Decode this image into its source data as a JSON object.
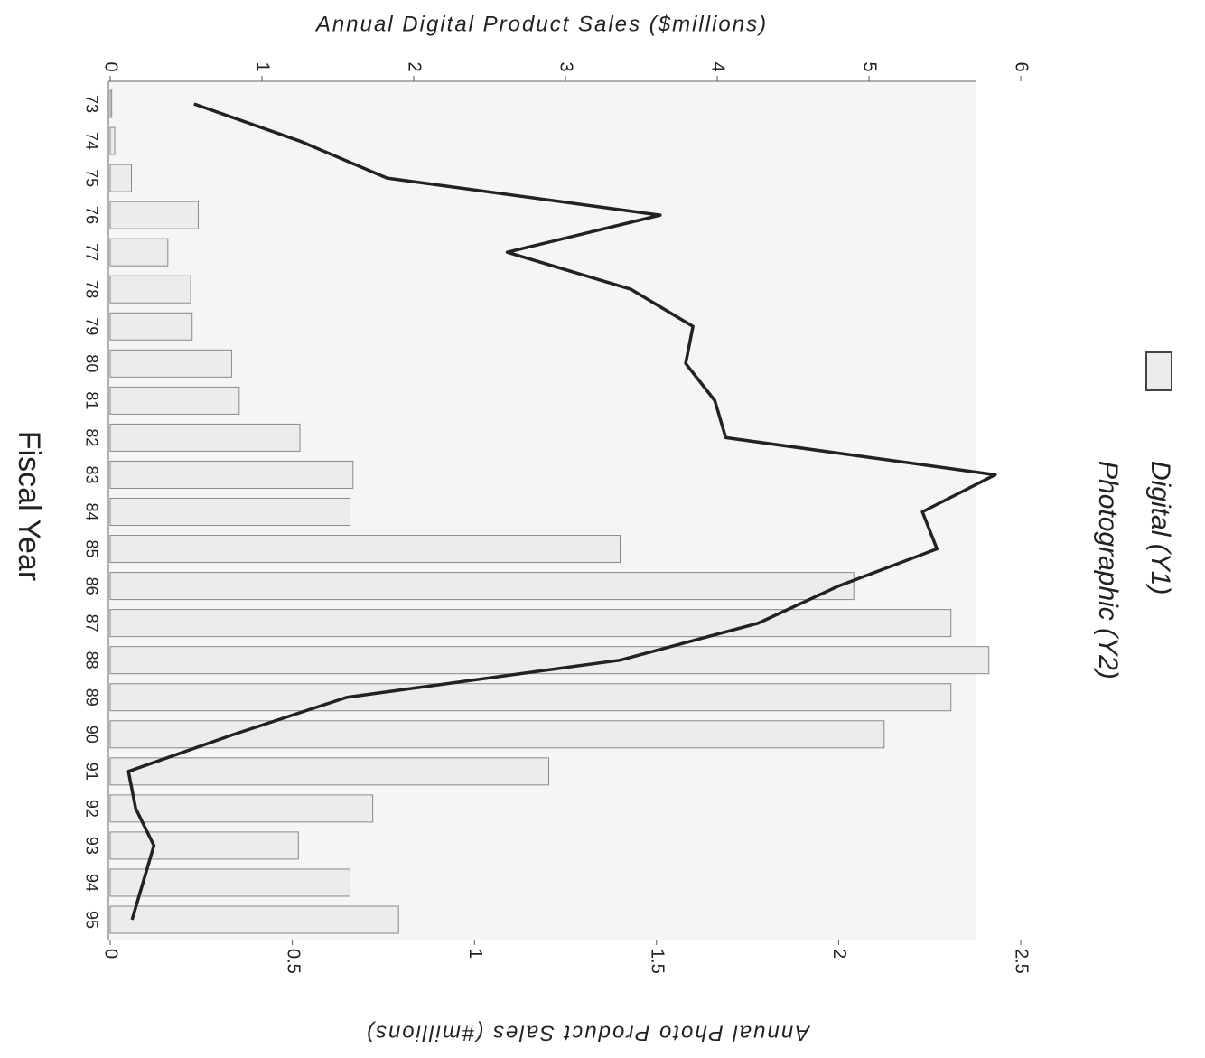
{
  "chart_data": {
    "type": "bar_line",
    "title": "Annual Digital Product Sales ($millions)",
    "y2_label": "Annual Photo Product Sales (#millions)",
    "x_label": "Fiscal Year",
    "categories": [
      "73",
      "74",
      "75",
      "76",
      "77",
      "78",
      "79",
      "80",
      "81",
      "82",
      "83",
      "84",
      "85",
      "86",
      "87",
      "88",
      "89",
      "90",
      "91",
      "92",
      "93",
      "94",
      "95"
    ],
    "series": [
      {
        "name": "Digital (Y1)",
        "type": "bar",
        "color": "#ececec",
        "axis": "y",
        "values": [
          0.01,
          0.03,
          0.14,
          0.58,
          0.38,
          0.53,
          0.54,
          0.8,
          0.85,
          1.25,
          1.6,
          1.58,
          3.36,
          4.9,
          5.54,
          5.79,
          5.54,
          5.1,
          2.89,
          1.73,
          1.24,
          1.58,
          1.9
        ]
      },
      {
        "name": "Photographic (Y2)",
        "type": "line",
        "color": "#222222",
        "axis": "y2",
        "values": [
          0.23,
          0.52,
          0.76,
          1.51,
          1.09,
          1.43,
          1.6,
          1.58,
          1.66,
          1.69,
          2.43,
          2.23,
          2.27,
          2.0,
          1.78,
          1.4,
          0.65,
          0.34,
          0.05,
          0.07,
          0.12,
          0.09,
          0.06
        ]
      }
    ],
    "ylim": [
      0,
      6
    ],
    "yticks": [
      0,
      1,
      2,
      3,
      4,
      5,
      6
    ],
    "y2lim": [
      0,
      2.5
    ],
    "y2ticks": [
      0,
      0.5,
      1,
      1.5,
      2,
      2.5
    ],
    "grid": false
  }
}
